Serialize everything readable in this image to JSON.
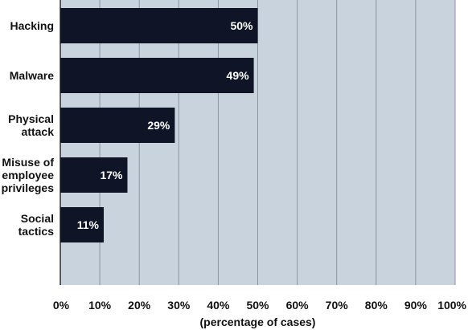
{
  "colors": {
    "plot_background": "#c9d3dd",
    "bar": "#0f1526",
    "gridline": "#8a96a3",
    "data_label": "#ffffff"
  },
  "chart_data": {
    "type": "bar",
    "orientation": "horizontal",
    "categories": [
      [
        "Hacking"
      ],
      [
        "Malware"
      ],
      [
        "Physical",
        "attack"
      ],
      [
        "Misuse of",
        "employee",
        "privileges"
      ],
      [
        "Social",
        "tactics"
      ]
    ],
    "values": [
      50,
      49,
      29,
      17,
      11
    ],
    "data_labels": [
      "50%",
      "49%",
      "29%",
      "17%",
      "11%"
    ],
    "xlim": [
      0,
      100
    ],
    "xticks": [
      0,
      10,
      20,
      30,
      40,
      50,
      60,
      70,
      80,
      90,
      100
    ],
    "xtick_labels": [
      "0%",
      "10%",
      "20%",
      "30%",
      "40%",
      "50%",
      "60%",
      "70%",
      "80%",
      "90%",
      "100%"
    ],
    "xlabel": "(percentage of cases)",
    "title": "",
    "grid": true
  }
}
